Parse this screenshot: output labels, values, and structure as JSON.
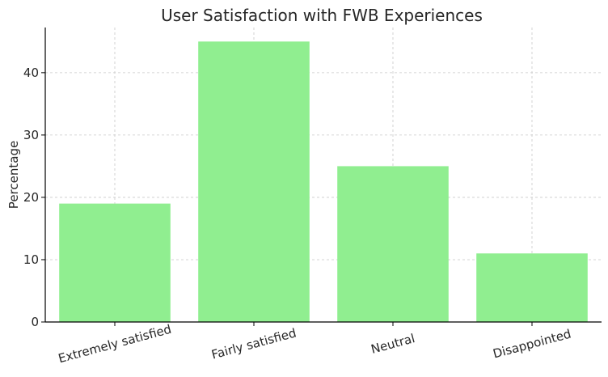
{
  "chart_data": {
    "type": "bar",
    "title": "User Satisfaction with FWB Experiences",
    "xlabel": "",
    "ylabel": "Percentage",
    "categories": [
      "Extremely satisfied",
      "Fairly satisfied",
      "Neutral",
      "Disappointed"
    ],
    "values": [
      19,
      45,
      25,
      11
    ],
    "ylim": [
      0,
      47.25
    ],
    "yticks": [
      0,
      10,
      20,
      30,
      40
    ],
    "grid": true,
    "bar_color": "#90ee90",
    "xtick_rotation": 15
  }
}
